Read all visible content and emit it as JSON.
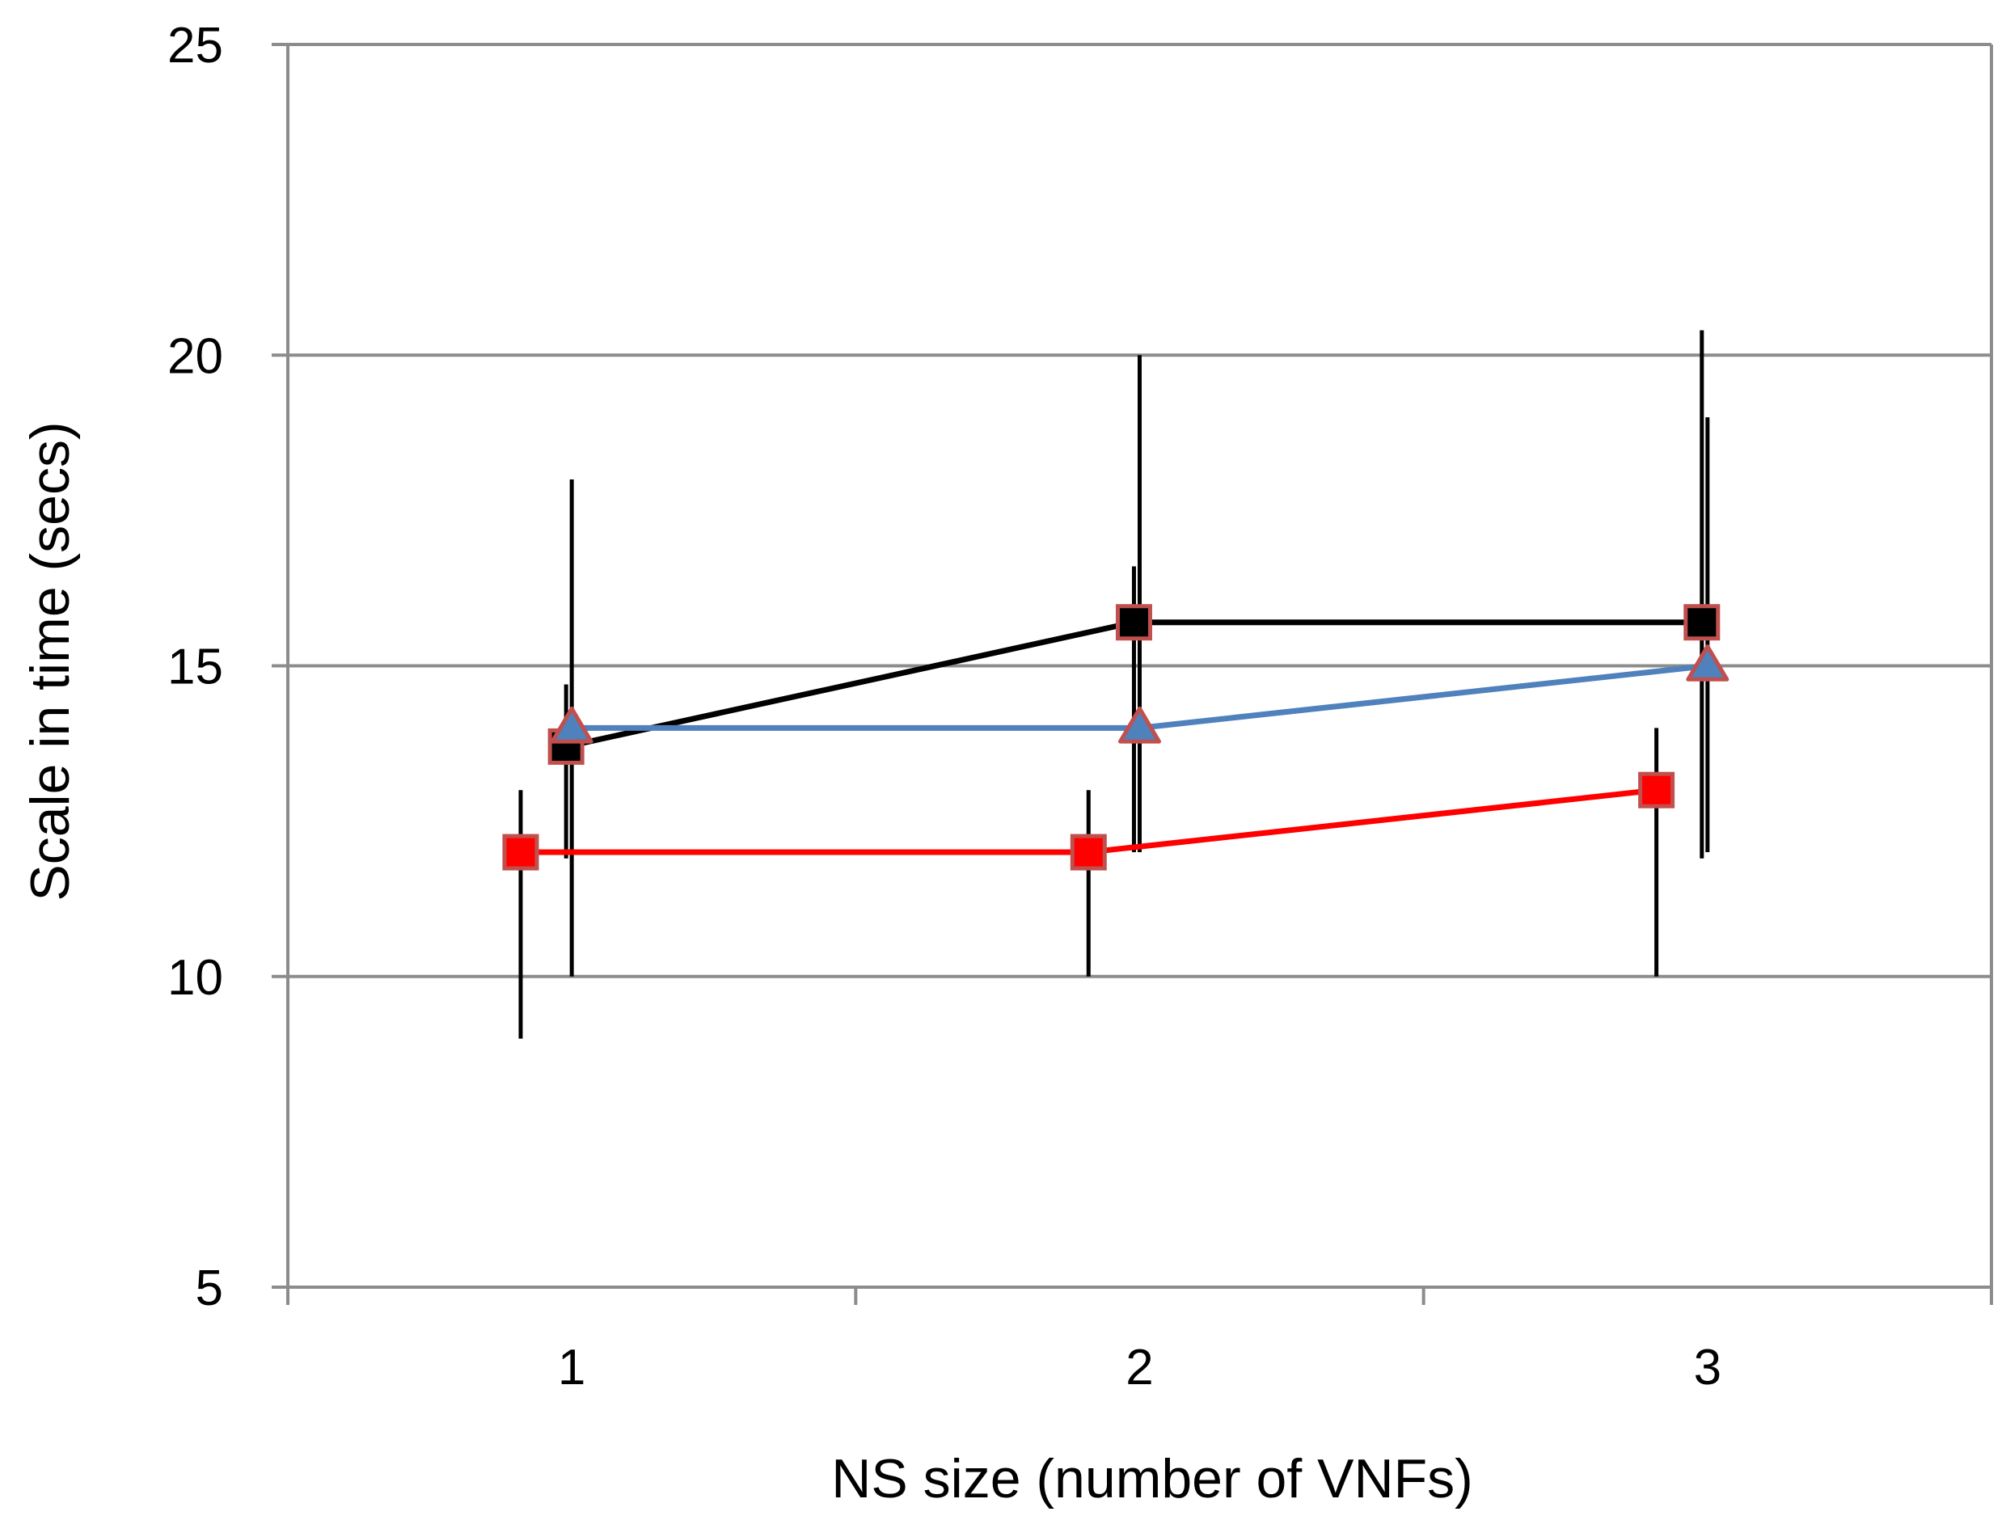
{
  "chart_data": {
    "type": "line",
    "title": "",
    "xlabel": "NS size (number of VNFs)",
    "ylabel": "Scale in time (secs)",
    "x": [
      1,
      2,
      3
    ],
    "x_tick_labels": [
      "1",
      "2",
      "3"
    ],
    "y_tick_labels": [
      "5",
      "10",
      "15",
      "20",
      "25"
    ],
    "ylim": [
      5,
      25
    ],
    "yticks": [
      5,
      10,
      15,
      20,
      25
    ],
    "grid": true,
    "legend": "none",
    "series": [
      {
        "values": [
          13.7,
          15.7,
          15.7
        ],
        "err_low": [
          11.9,
          12.0,
          11.9
        ],
        "err_high": [
          14.7,
          16.6,
          20.4
        ],
        "color": "#000000",
        "marker": "square",
        "marker_fill": "#000000",
        "marker_edge": "#c0504d",
        "x_offset": -0.01
      },
      {
        "values": [
          14.0,
          14.0,
          15.0
        ],
        "err_low": [
          10.0,
          12.0,
          12.0
        ],
        "err_high": [
          18.0,
          20.0,
          19.0
        ],
        "color": "#4f81bd",
        "marker": "triangle",
        "marker_fill": "#4f81bd",
        "marker_edge": "#c0504d",
        "x_offset": 0.0
      },
      {
        "values": [
          12.0,
          12.0,
          13.0
        ],
        "err_low": [
          9.0,
          10.0,
          10.0
        ],
        "err_high": [
          13.0,
          13.0,
          14.0
        ],
        "color": "#ff0000",
        "marker": "square",
        "marker_fill": "#ff0000",
        "marker_edge": "#c0504d",
        "x_offset": -0.09
      }
    ]
  }
}
